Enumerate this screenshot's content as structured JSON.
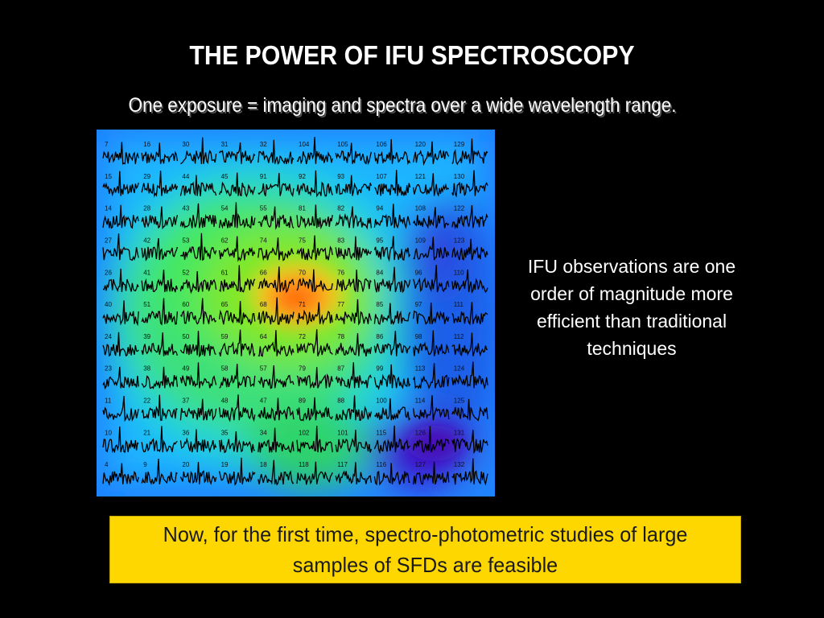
{
  "slide": {
    "title": "THE POWER OF IFU SPECTROSCOPY",
    "subtitle": "One exposure = imaging and spectra over a wide wavelength range.",
    "side_text": "IFU observations are one order of magnitude more efficient than traditional techniques",
    "callout_text": "Now, for the first time, spectro-photometric studies of large samples of SFDs are feasible"
  },
  "colors": {
    "background": "#000000",
    "title_text": "#ffffff",
    "callout_bg": "#ffd700",
    "heatmap_base": "#1a7cff"
  },
  "ifu_map": {
    "fiber_labels": [
      [
        "7",
        "16",
        "30",
        "31",
        "32",
        "104",
        "105",
        "106",
        "120",
        "129"
      ],
      [
        "15",
        "29",
        "44",
        "45",
        "91",
        "92",
        "93",
        "107",
        "121",
        "130"
      ],
      [
        "14",
        "28",
        "43",
        "54",
        "55",
        "81",
        "82",
        "94",
        "108",
        "122"
      ],
      [
        "27",
        "42",
        "53",
        "62",
        "74",
        "75",
        "83",
        "95",
        "109",
        "123"
      ],
      [
        "26",
        "41",
        "52",
        "61",
        "66",
        "70",
        "76",
        "84",
        "96",
        "110"
      ],
      [
        "40",
        "51",
        "60",
        "65",
        "68",
        "71",
        "77",
        "85",
        "97",
        "111"
      ],
      [
        "24",
        "39",
        "50",
        "59",
        "64",
        "72",
        "78",
        "86",
        "98",
        "112"
      ],
      [
        "23",
        "38",
        "49",
        "58",
        "57",
        "79",
        "87",
        "99",
        "113",
        "124"
      ],
      [
        "11",
        "22",
        "37",
        "48",
        "47",
        "89",
        "88",
        "100",
        "114",
        "125"
      ],
      [
        "10",
        "21",
        "36",
        "35",
        "34",
        "102",
        "101",
        "115",
        "126",
        "131"
      ],
      [
        "4",
        "9",
        "20",
        "19",
        "18",
        "118",
        "117",
        "116",
        "127",
        "132"
      ]
    ]
  }
}
